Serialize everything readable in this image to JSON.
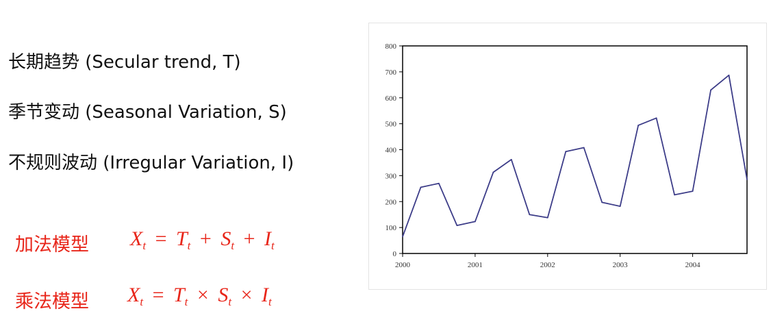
{
  "components": [
    {
      "text": "长期趋势 (Secular trend, T)"
    },
    {
      "text": "季节变动 (Seasonal Variation, S)"
    },
    {
      "text": "不规则波动 (Irregular Variation, I)"
    }
  ],
  "models": {
    "additive": {
      "name": "加法模型",
      "lhs": "X",
      "lhs_sub": "t",
      "eq": "=",
      "t1": "T",
      "t1_sub": "t",
      "op1": "+",
      "t2": "S",
      "t2_sub": "t",
      "op2": "+",
      "t3": "I",
      "t3_sub": "t"
    },
    "multiplicative": {
      "name": "乘法模型",
      "lhs": "X",
      "lhs_sub": "t",
      "eq": "=",
      "t1": "T",
      "t1_sub": "t",
      "op1": "×",
      "t2": "S",
      "t2_sub": "t",
      "op2": "×",
      "t3": "I",
      "t3_sub": "t"
    }
  },
  "colors": {
    "model_text": "#e8261a",
    "line": "#3c3c88",
    "axis": "#000000"
  },
  "chart_data": {
    "type": "line",
    "title": "",
    "xlabel": "",
    "ylabel": "",
    "xlim": [
      2000,
      2004.75
    ],
    "ylim": [
      0,
      800
    ],
    "yticks": [
      0,
      100,
      200,
      300,
      400,
      500,
      600,
      700,
      800
    ],
    "xticks": [
      2000,
      2001,
      2002,
      2003,
      2004
    ],
    "x": [
      2000,
      2000.25,
      2000.5,
      2000.75,
      2001,
      2001.25,
      2001.5,
      2001.75,
      2002,
      2002.25,
      2002.5,
      2002.75,
      2003,
      2003.25,
      2003.5,
      2003.75,
      2004,
      2004.25,
      2004.5,
      2004.75
    ],
    "values": [
      65,
      255,
      270,
      108,
      123,
      313,
      362,
      150,
      138,
      393,
      408,
      197,
      182,
      494,
      522,
      226,
      240,
      630,
      687,
      285
    ],
    "grid": false,
    "legend": "none"
  }
}
